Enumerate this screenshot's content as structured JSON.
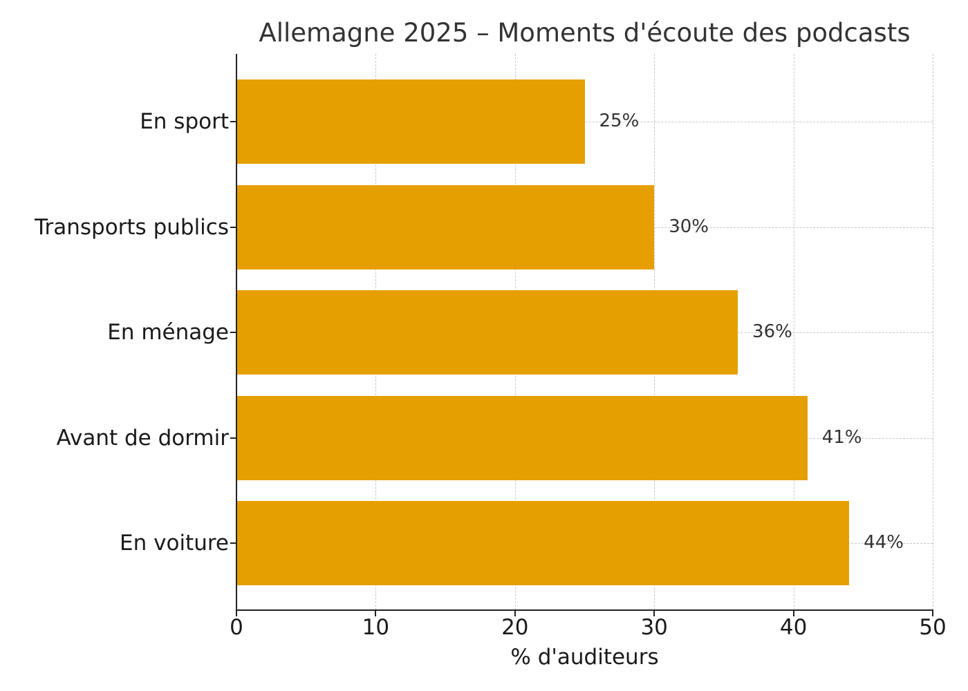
{
  "chart_data": {
    "type": "bar",
    "orientation": "horizontal",
    "title": "Allemagne 2025 – Moments d'écoute des podcasts",
    "xlabel": "% d'auditeurs",
    "ylabel": "",
    "xlim": [
      0,
      50
    ],
    "xticks": [
      "0",
      "10",
      "20",
      "30",
      "40",
      "50"
    ],
    "grid": true,
    "grid_style": "dashed",
    "bar_color": "#e69f00",
    "categories": [
      "En sport",
      "Transports publics",
      "En ménage",
      "Avant de dormir",
      "En voiture"
    ],
    "values": [
      25,
      30,
      36,
      41,
      44
    ],
    "value_labels": [
      "25%",
      "30%",
      "36%",
      "41%",
      "44%"
    ]
  }
}
